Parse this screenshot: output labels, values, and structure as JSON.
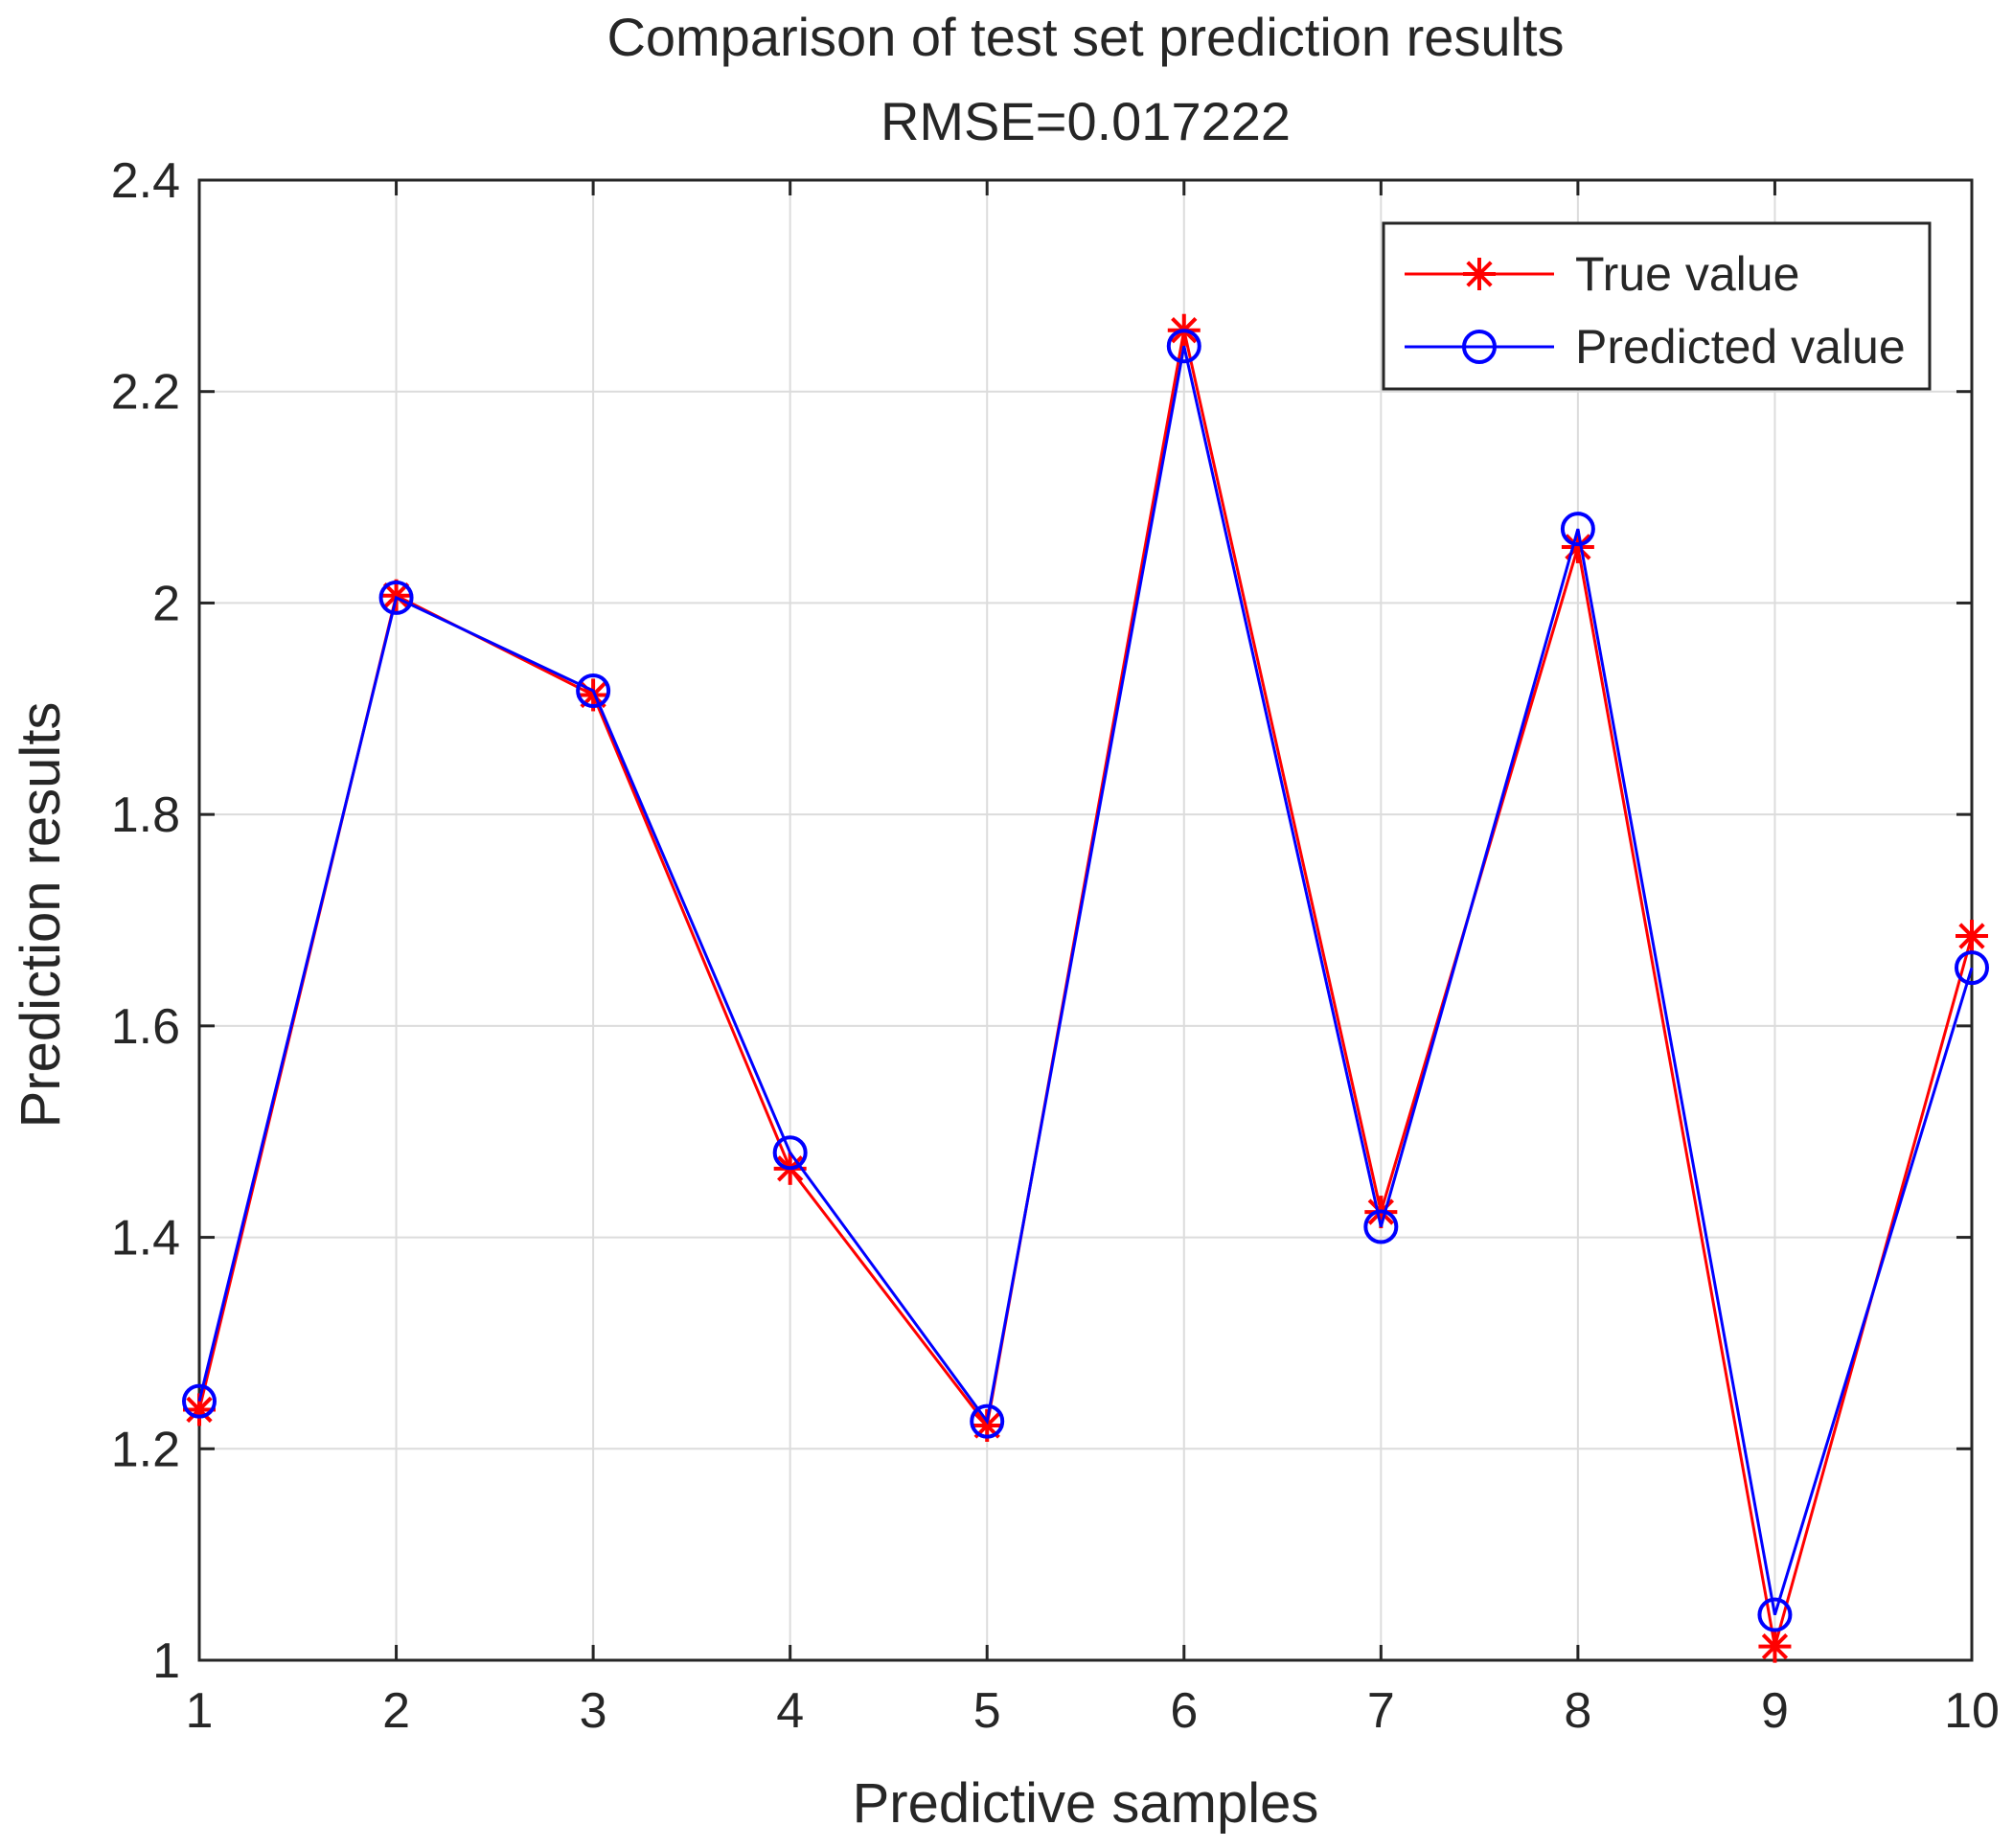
{
  "chart_data": {
    "type": "line",
    "title": "Comparison of test set prediction results",
    "subtitle": "RMSE=0.017222",
    "xlabel": "Predictive samples",
    "ylabel": "Prediction results",
    "x": [
      1,
      2,
      3,
      4,
      5,
      6,
      7,
      8,
      9,
      10
    ],
    "xlim": [
      1,
      10
    ],
    "ylim": [
      1,
      2.4
    ],
    "xticks": [
      "1",
      "2",
      "3",
      "4",
      "5",
      "6",
      "7",
      "8",
      "9",
      "10"
    ],
    "yticks": [
      "1",
      "1.2",
      "1.4",
      "1.6",
      "1.8",
      "2",
      "2.2",
      "2.4"
    ],
    "ytick_values": [
      1,
      1.2,
      1.4,
      1.6,
      1.8,
      2,
      2.2,
      2.4
    ],
    "grid": true,
    "legend_position": "top-right",
    "series": [
      {
        "name": "True value",
        "marker": "asterisk",
        "color": "#ff0000",
        "values": [
          1.237,
          2.007,
          1.913,
          1.465,
          1.222,
          2.258,
          1.424,
          2.053,
          1.013,
          1.685
        ]
      },
      {
        "name": "Predicted value",
        "marker": "circle",
        "color": "#0000ff",
        "values": [
          1.245,
          2.005,
          1.917,
          1.48,
          1.226,
          2.243,
          1.41,
          2.07,
          1.043,
          1.655
        ]
      }
    ]
  }
}
